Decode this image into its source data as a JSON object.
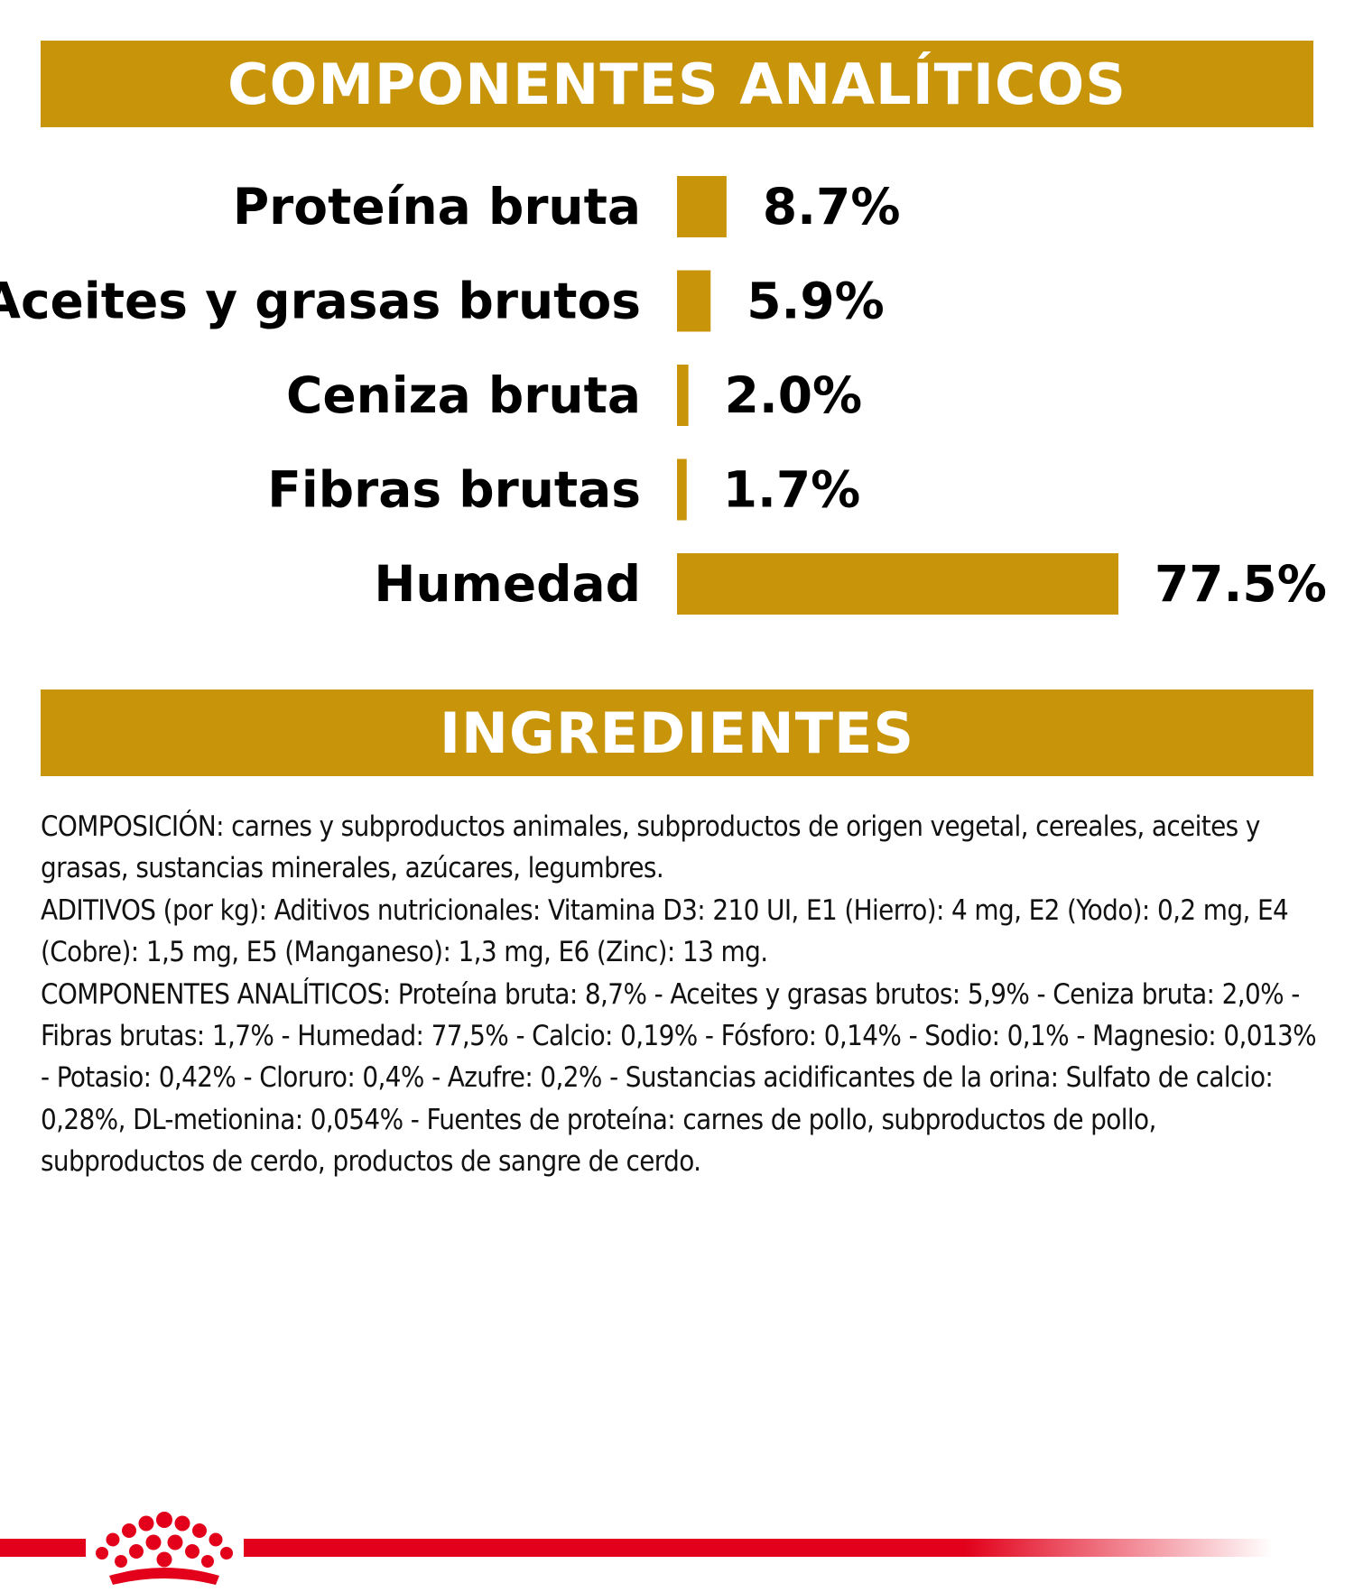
{
  "colors": {
    "accent": "#c8950a",
    "brand_red": "#e2001a",
    "text": "#000000"
  },
  "sections": {
    "components_title": "COMPONENTES ANALÍTICOS",
    "ingredients_title": "INGREDIENTES"
  },
  "chart_data": {
    "type": "bar",
    "orientation": "horizontal",
    "categories": [
      "Proteína bruta",
      "Aceites y grasas brutos",
      "Ceniza bruta",
      "Fibras brutas",
      "Humedad"
    ],
    "values": [
      8.7,
      5.9,
      2.0,
      1.7,
      77.5
    ],
    "value_labels": [
      "8.7%",
      "5.9%",
      "2.0%",
      "1.7%",
      "77.5%"
    ],
    "unit": "%",
    "grid": false,
    "legend": "none"
  },
  "ingredients": {
    "paragraphs": [
      "COMPOSICIÓN: carnes y subproductos animales, subproductos de origen vegetal, cereales, aceites y grasas, sustancias minerales, azúcares, legumbres.",
      "ADITIVOS (por kg): Aditivos nutricionales: Vitamina D3: 210 UI, E1 (Hierro): 4 mg, E2 (Yodo): 0,2 mg, E4 (Cobre): 1,5 mg, E5 (Manganeso): 1,3 mg, E6 (Zinc): 13 mg.",
      "COMPONENTES ANALÍTICOS: Proteína bruta: 8,7% - Aceites y grasas brutos: 5,9% - Ceniza bruta: 2,0% - Fibras brutas: 1,7% - Humedad: 77,5% - Calcio: 0,19% - Fósforo: 0,14% - Sodio: 0,1% - Magnesio: 0,013% - Potasio: 0,42% - Cloruro: 0,4% - Azufre: 0,2% - Sustancias acidificantes de la orina: Sulfato de calcio: 0,28%, DL-metionina: 0,054% - Fuentes de proteína: carnes de pollo, subproductos de pollo, subproductos de cerdo, productos de sangre de cerdo."
    ]
  },
  "footer": {
    "logo_icon": "royal-canin-crown-icon"
  }
}
